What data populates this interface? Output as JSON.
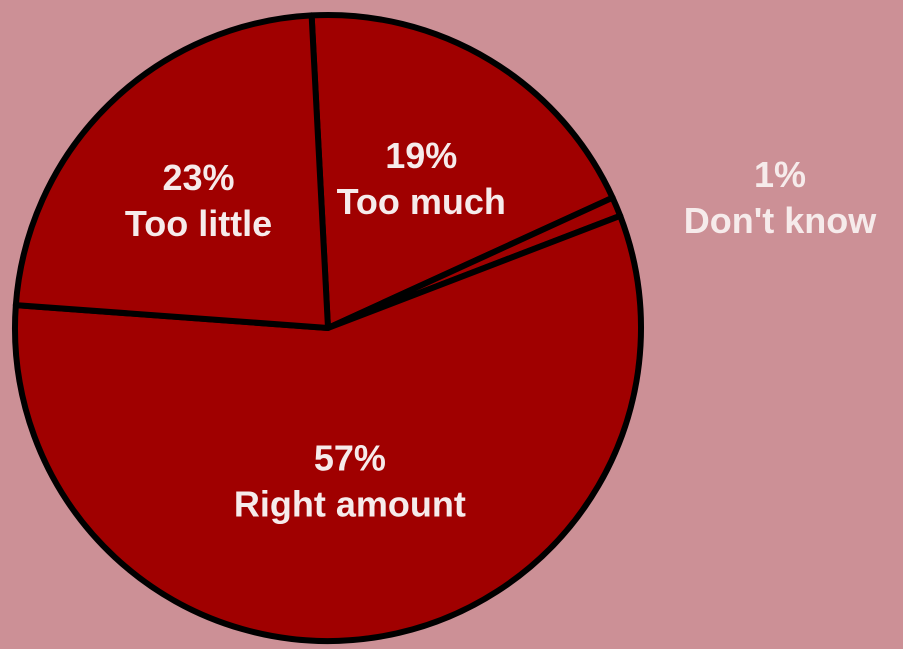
{
  "chart_data": {
    "type": "pie",
    "slices": [
      {
        "label": "Too much",
        "percent_text": "19%",
        "value": 19,
        "color": "#a00000"
      },
      {
        "label": "Don't know",
        "percent_text": "1%",
        "value": 1,
        "color": "#a00000"
      },
      {
        "label": "Right amount",
        "percent_text": "57%",
        "value": 57,
        "color": "#a00000"
      },
      {
        "label": "Too little",
        "percent_text": "23%",
        "value": 23,
        "color": "#a00000"
      }
    ],
    "background_color": "#cc9096",
    "outline_color": "#000000",
    "label_color": "#f6ebeb",
    "legend": "none"
  }
}
